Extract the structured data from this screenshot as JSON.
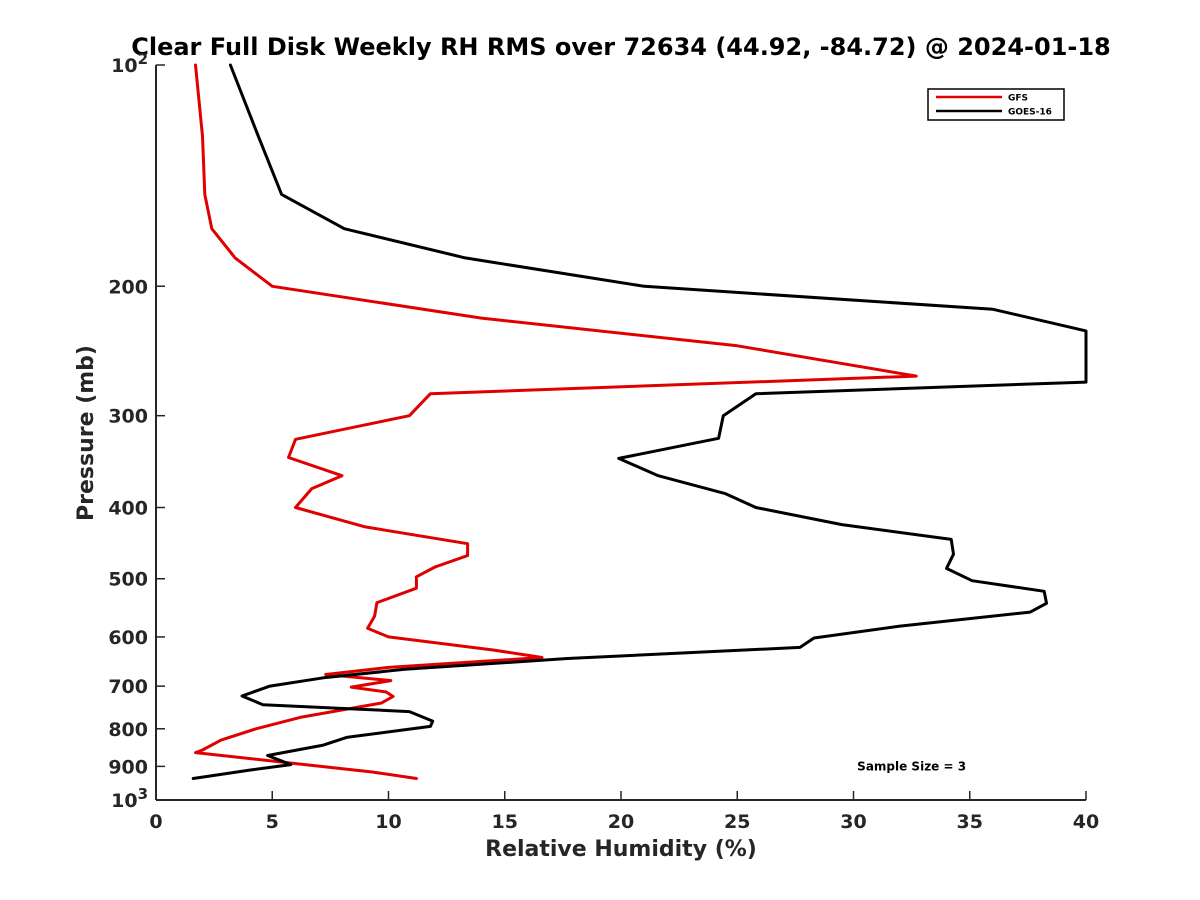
{
  "chart_data": {
    "type": "line",
    "title": "Clear Full Disk Weekly RH RMS over 72634 (44.92, -84.72) @ 2024-01-18",
    "xlabel": "Relative Humidity (%)",
    "ylabel": "Pressure (mb)",
    "xlim": [
      0,
      40
    ],
    "ylim": [
      100,
      1000
    ],
    "yscale": "log",
    "y_reversed": true,
    "grid": false,
    "legend_position": "top-right",
    "x_ticks": [
      {
        "value": 0,
        "label": "0"
      },
      {
        "value": 5,
        "label": "5"
      },
      {
        "value": 10,
        "label": "10"
      },
      {
        "value": 15,
        "label": "15"
      },
      {
        "value": 20,
        "label": "20"
      },
      {
        "value": 25,
        "label": "25"
      },
      {
        "value": 30,
        "label": "30"
      },
      {
        "value": 35,
        "label": "35"
      },
      {
        "value": 40,
        "label": "40"
      }
    ],
    "y_ticks": [
      {
        "value": 100,
        "base": "10",
        "exp": "2"
      },
      {
        "value": 200,
        "label": "200"
      },
      {
        "value": 300,
        "label": "300"
      },
      {
        "value": 400,
        "label": "400"
      },
      {
        "value": 500,
        "label": "500"
      },
      {
        "value": 600,
        "label": "600"
      },
      {
        "value": 700,
        "label": "700"
      },
      {
        "value": 800,
        "label": "800"
      },
      {
        "value": 900,
        "label": "900"
      },
      {
        "value": 1000,
        "base": "10",
        "exp": "3"
      }
    ],
    "series": [
      {
        "name": "GFS",
        "color": "#e00000",
        "points": [
          [
            1.7,
            100
          ],
          [
            2.0,
            125
          ],
          [
            2.1,
            150
          ],
          [
            2.4,
            167
          ],
          [
            3.4,
            183
          ],
          [
            5.0,
            200
          ],
          [
            14.0,
            221
          ],
          [
            25.0,
            241
          ],
          [
            32.7,
            265
          ],
          [
            11.8,
            280
          ],
          [
            10.9,
            300
          ],
          [
            6.0,
            323
          ],
          [
            5.7,
            342
          ],
          [
            8.0,
            362
          ],
          [
            6.7,
            377
          ],
          [
            6.0,
            400
          ],
          [
            9.0,
            425
          ],
          [
            13.4,
            448
          ],
          [
            13.4,
            465
          ],
          [
            12.0,
            482
          ],
          [
            11.2,
            497
          ],
          [
            11.2,
            515
          ],
          [
            9.5,
            539
          ],
          [
            9.4,
            562
          ],
          [
            9.1,
            584
          ],
          [
            10.0,
            600
          ],
          [
            14.5,
            625
          ],
          [
            16.6,
            640
          ],
          [
            10.0,
            660
          ],
          [
            7.3,
            675
          ],
          [
            10.1,
            688
          ],
          [
            8.4,
            702
          ],
          [
            9.9,
            713
          ],
          [
            10.2,
            723
          ],
          [
            9.7,
            738
          ],
          [
            6.2,
            772
          ],
          [
            4.3,
            800
          ],
          [
            2.8,
            829
          ],
          [
            2.0,
            855
          ],
          [
            1.7,
            862
          ],
          [
            9.3,
            916
          ],
          [
            11.2,
            935
          ]
        ]
      },
      {
        "name": "GOES-16",
        "color": "#000000",
        "points": [
          [
            3.2,
            100
          ],
          [
            4.4,
            125
          ],
          [
            5.4,
            150
          ],
          [
            8.1,
            167
          ],
          [
            13.3,
            183
          ],
          [
            21.0,
            200
          ],
          [
            36.0,
            215
          ],
          [
            40.0,
            230
          ],
          [
            40.0,
            270
          ],
          [
            25.8,
            280
          ],
          [
            24.4,
            300
          ],
          [
            24.2,
            322
          ],
          [
            19.9,
            343
          ],
          [
            21.6,
            362
          ],
          [
            24.5,
            383
          ],
          [
            25.8,
            400
          ],
          [
            29.5,
            422
          ],
          [
            34.2,
            442
          ],
          [
            34.3,
            463
          ],
          [
            34.0,
            484
          ],
          [
            35.1,
            503
          ],
          [
            38.2,
            520
          ],
          [
            38.3,
            540
          ],
          [
            37.6,
            555
          ],
          [
            32.0,
            580
          ],
          [
            28.3,
            602
          ],
          [
            27.7,
            620
          ],
          [
            17.7,
            642
          ],
          [
            10.7,
            664
          ],
          [
            7.2,
            682
          ],
          [
            4.9,
            700
          ],
          [
            3.7,
            722
          ],
          [
            4.6,
            742
          ],
          [
            10.9,
            758
          ],
          [
            11.9,
            781
          ],
          [
            11.8,
            794
          ],
          [
            8.2,
            822
          ],
          [
            7.2,
            842
          ],
          [
            4.8,
            870
          ],
          [
            5.8,
            895
          ],
          [
            4.1,
            910
          ],
          [
            1.6,
            935
          ]
        ]
      }
    ],
    "annotations": [
      {
        "text": "Sample Size = 3",
        "x": 32.5,
        "y": 900
      }
    ]
  }
}
